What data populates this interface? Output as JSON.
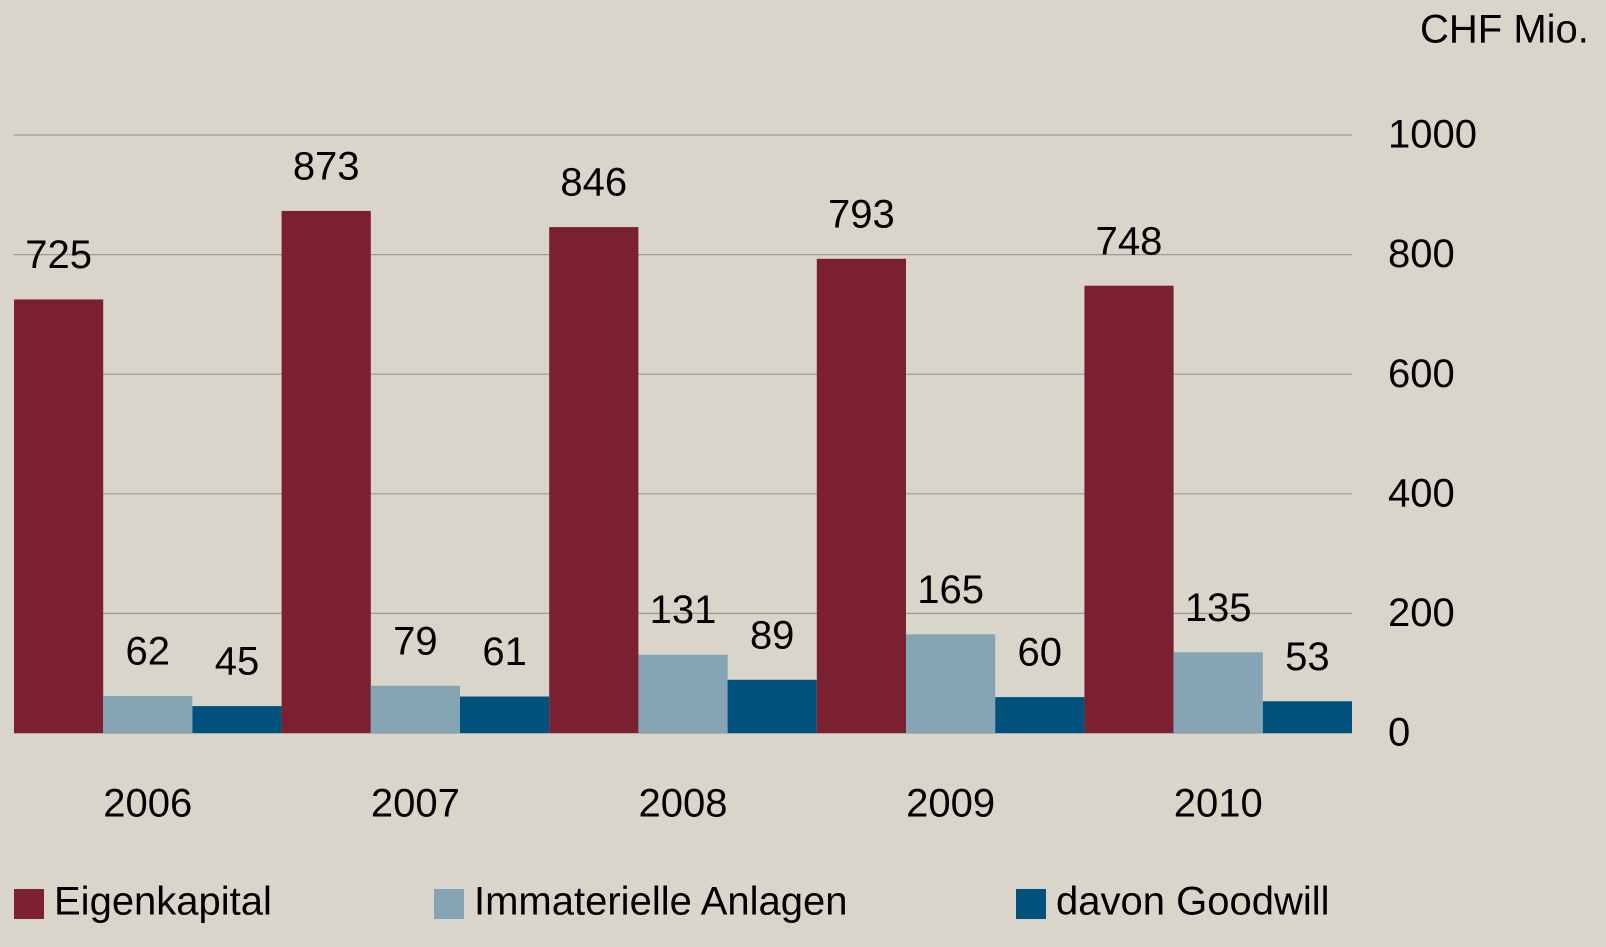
{
  "chart_data": {
    "type": "bar",
    "y_axis_label": "CHF Mio.",
    "categories": [
      "2006",
      "2007",
      "2008",
      "2009",
      "2010"
    ],
    "series": [
      {
        "name": "Eigenkapital",
        "color": "#7b2030",
        "values": [
          725,
          873,
          846,
          793,
          748
        ]
      },
      {
        "name": "Immaterielle Anlagen",
        "color": "#86a5b4",
        "values": [
          62,
          79,
          131,
          165,
          135
        ]
      },
      {
        "name": "davon Goodwill",
        "color": "#00527c",
        "values": [
          45,
          61,
          89,
          60,
          53
        ]
      }
    ],
    "ylim": [
      0,
      1000
    ],
    "yticks": [
      0,
      200,
      400,
      600,
      800,
      1000
    ],
    "grid": true,
    "legend": "bottom"
  }
}
